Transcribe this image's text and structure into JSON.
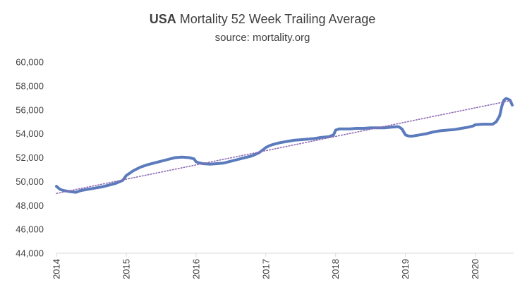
{
  "chart_data": {
    "type": "line",
    "title_bold": "USA",
    "title_rest": "Mortality 52 Week Trailing Average",
    "subtitle": "source: mortality.org",
    "xlabel": "",
    "ylabel": "",
    "ylim": [
      44000,
      60000
    ],
    "yticks": [
      "44,000",
      "46,000",
      "48,000",
      "50,000",
      "52,000",
      "54,000",
      "56,000",
      "58,000",
      "60,000"
    ],
    "xlim": [
      2014,
      2020.55
    ],
    "xticks": [
      "2014",
      "2015",
      "2016",
      "2017",
      "2018",
      "2019",
      "2020"
    ],
    "grid": false,
    "legend": "none",
    "series": [
      {
        "style": "solid",
        "color": "#5b7bbd",
        "x": [
          2014.0,
          2014.05,
          2014.1,
          2014.2,
          2014.28,
          2014.35,
          2014.45,
          2014.55,
          2014.65,
          2014.75,
          2014.85,
          2014.95,
          2015.0,
          2015.05,
          2015.1,
          2015.2,
          2015.3,
          2015.4,
          2015.5,
          2015.6,
          2015.7,
          2015.8,
          2015.9,
          2015.97,
          2016.0,
          2016.05,
          2016.1,
          2016.2,
          2016.3,
          2016.4,
          2016.5,
          2016.6,
          2016.7,
          2016.8,
          2016.9,
          2016.97,
          2017.0,
          2017.05,
          2017.1,
          2017.2,
          2017.3,
          2017.4,
          2017.5,
          2017.6,
          2017.7,
          2017.8,
          2017.9,
          2017.97,
          2018.0,
          2018.05,
          2018.1,
          2018.2,
          2018.3,
          2018.4,
          2018.5,
          2018.6,
          2018.7,
          2018.8,
          2018.9,
          2018.95,
          2019.0,
          2019.05,
          2019.1,
          2019.2,
          2019.3,
          2019.4,
          2019.5,
          2019.6,
          2019.7,
          2019.8,
          2019.9,
          2019.97,
          2020.0,
          2020.1,
          2020.2,
          2020.25,
          2020.3,
          2020.35,
          2020.38,
          2020.41,
          2020.44,
          2020.47,
          2020.5,
          2020.53
        ],
        "values": [
          49600,
          49350,
          49250,
          49150,
          49100,
          49250,
          49350,
          49450,
          49550,
          49700,
          49850,
          50100,
          50500,
          50700,
          50900,
          51200,
          51400,
          51550,
          51700,
          51850,
          52000,
          52050,
          52000,
          51900,
          51650,
          51550,
          51500,
          51450,
          51500,
          51550,
          51700,
          51850,
          52000,
          52150,
          52400,
          52700,
          52850,
          53000,
          53100,
          53250,
          53350,
          53450,
          53500,
          53550,
          53600,
          53700,
          53750,
          53900,
          54300,
          54400,
          54400,
          54400,
          54450,
          54450,
          54500,
          54500,
          54500,
          54550,
          54600,
          54400,
          53900,
          53800,
          53800,
          53900,
          54000,
          54150,
          54250,
          54300,
          54350,
          54450,
          54550,
          54650,
          54750,
          54800,
          54800,
          54800,
          55000,
          55500,
          56300,
          56800,
          56950,
          56900,
          56800,
          56400
        ]
      },
      {
        "style": "dotted",
        "color": "#8e6cb5",
        "x": [
          2014.0,
          2020.53
        ],
        "values": [
          49000,
          56800
        ]
      }
    ]
  }
}
